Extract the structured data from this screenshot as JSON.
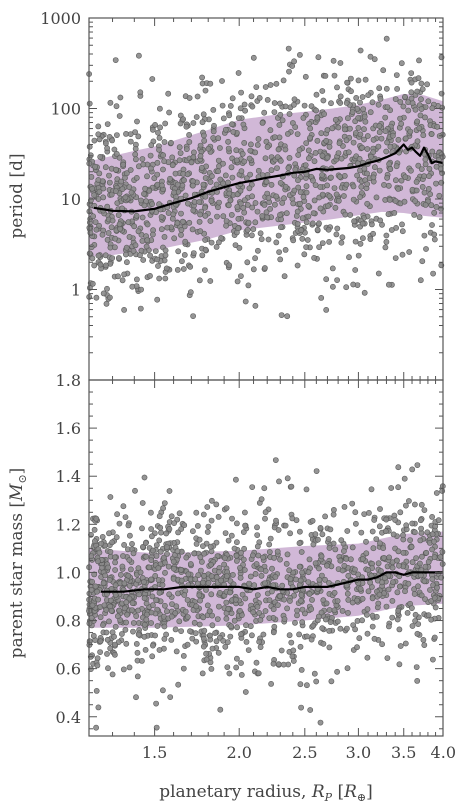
{
  "chart_data": [
    {
      "type": "scatter",
      "panel": "top",
      "title": "",
      "ylabel": "period [d]",
      "xlabel": "",
      "xscale": "log",
      "yscale": "log",
      "xlim": [
        1.2,
        4.0
      ],
      "ylim": [
        0.1,
        1000
      ],
      "yticks": [
        1,
        10,
        100,
        1000
      ],
      "ytick_labels": [
        "1",
        "10",
        "100",
        "1000"
      ],
      "band": {
        "x": [
          1.2,
          1.3,
          1.4,
          1.5,
          1.6,
          1.8,
          2.0,
          2.25,
          2.5,
          2.75,
          3.0,
          3.25,
          3.5,
          3.75,
          4.0
        ],
        "lower": [
          2.3,
          2.4,
          2.6,
          2.7,
          3.0,
          3.6,
          4.5,
          5.0,
          5.5,
          6.0,
          6.6,
          7.2,
          7.0,
          6.5,
          6.2
        ],
        "upper": [
          26,
          30,
          34,
          38,
          44,
          58,
          75,
          85,
          92,
          100,
          110,
          125,
          145,
          140,
          120
        ]
      },
      "median_line": {
        "x": [
          1.22,
          1.3,
          1.4,
          1.5,
          1.6,
          1.7,
          1.8,
          1.9,
          2.0,
          2.1,
          2.2,
          2.3,
          2.4,
          2.5,
          2.6,
          2.7,
          2.8,
          2.9,
          3.0,
          3.1,
          3.2,
          3.3,
          3.4,
          3.5,
          3.55,
          3.6,
          3.65,
          3.7,
          3.75,
          3.8,
          3.85,
          3.9,
          4.0
        ],
        "y": [
          8.0,
          7.4,
          7.3,
          7.8,
          9.0,
          10.2,
          12.0,
          13.5,
          15.0,
          16.0,
          17.2,
          18.2,
          19.5,
          20.0,
          21.5,
          21.0,
          21.5,
          22.0,
          23.0,
          25.0,
          26.5,
          29.0,
          32.0,
          40.0,
          35.0,
          37.0,
          33.0,
          30.0,
          37.0,
          31.0,
          25.0,
          26.0,
          25.0
        ]
      },
      "points": {
        "n": 1400,
        "x_range": [
          1.2,
          4.0
        ],
        "y_range": [
          0.5,
          800
        ],
        "color": "#808080"
      }
    },
    {
      "type": "scatter",
      "panel": "bottom",
      "title": "",
      "ylabel": "parent star mass [M⊙]",
      "xlabel": "planetary radius, R_P [R⊕]",
      "xscale": "log",
      "yscale": "linear",
      "xlim": [
        1.2,
        4.0
      ],
      "ylim": [
        0.32,
        1.8
      ],
      "yticks": [
        0.4,
        0.6,
        0.8,
        1.0,
        1.2,
        1.4,
        1.6,
        1.8
      ],
      "ytick_labels": [
        "0.4",
        "0.6",
        "0.8",
        "1.0",
        "1.2",
        "1.4",
        "1.6",
        "1.8"
      ],
      "xticks": [
        1.5,
        2.0,
        2.5,
        3.0,
        3.5,
        4.0
      ],
      "xtick_labels": [
        "1.5",
        "2.0",
        "2.5",
        "3.0",
        "3.5",
        "4.0"
      ],
      "band": {
        "x": [
          1.2,
          1.5,
          2.0,
          2.5,
          3.0,
          3.5,
          4.0
        ],
        "lower": [
          0.77,
          0.77,
          0.78,
          0.8,
          0.82,
          0.86,
          0.87
        ],
        "upper": [
          1.1,
          1.08,
          1.09,
          1.11,
          1.12,
          1.16,
          1.17
        ]
      },
      "median_line": {
        "x": [
          1.25,
          1.35,
          1.45,
          1.55,
          1.65,
          1.75,
          1.9,
          2.0,
          2.1,
          2.2,
          2.3,
          2.4,
          2.5,
          2.6,
          2.7,
          2.8,
          2.9,
          3.0,
          3.1,
          3.2,
          3.3,
          3.4,
          3.5,
          3.6,
          3.7,
          3.8,
          3.9,
          4.0
        ],
        "y": [
          0.92,
          0.92,
          0.93,
          0.93,
          0.94,
          0.94,
          0.94,
          0.94,
          0.93,
          0.94,
          0.93,
          0.93,
          0.94,
          0.94,
          0.94,
          0.95,
          0.96,
          0.97,
          0.97,
          0.98,
          1.0,
          1.0,
          0.99,
          1.0,
          1.0,
          1.0,
          1.0,
          1.0
        ]
      },
      "points": {
        "n": 1400,
        "x_range": [
          1.2,
          4.0
        ],
        "y_range": [
          0.35,
          1.72
        ],
        "color": "#808080"
      }
    }
  ],
  "colors": {
    "band": "#c9acd0",
    "points_fill": "#8a8a8a",
    "points_stroke": "#5a5a5a",
    "median": "#000000",
    "axes": "#555555",
    "text": "#444444"
  }
}
